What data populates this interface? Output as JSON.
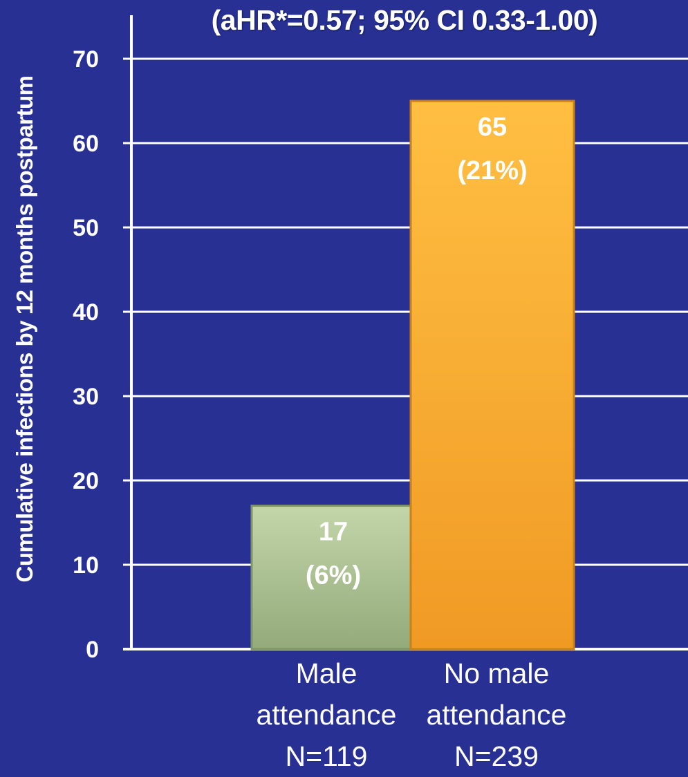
{
  "chart_data": {
    "type": "bar",
    "subtitle": "(aHR*=0.57; 95% CI 0.33-1.00)",
    "ylabel": "Cumulative infections  by 12 months postpartum",
    "ylim": [
      0,
      70
    ],
    "yticks": [
      0,
      10,
      20,
      30,
      40,
      50,
      60,
      70
    ],
    "grid": true,
    "categories": [
      {
        "lines": [
          "Male",
          "attendance",
          "N=119"
        ]
      },
      {
        "lines": [
          "No male",
          "attendance",
          "N=239"
        ]
      }
    ],
    "values": [
      17,
      65
    ],
    "data_labels": [
      {
        "count": "17",
        "pct": "(6%)"
      },
      {
        "count": "65",
        "pct": "(21%)"
      }
    ],
    "colors": {
      "background": "#283193",
      "grid": "#ffffff",
      "bar1": "#a7bb8c",
      "bar2": "#fba82f"
    }
  }
}
